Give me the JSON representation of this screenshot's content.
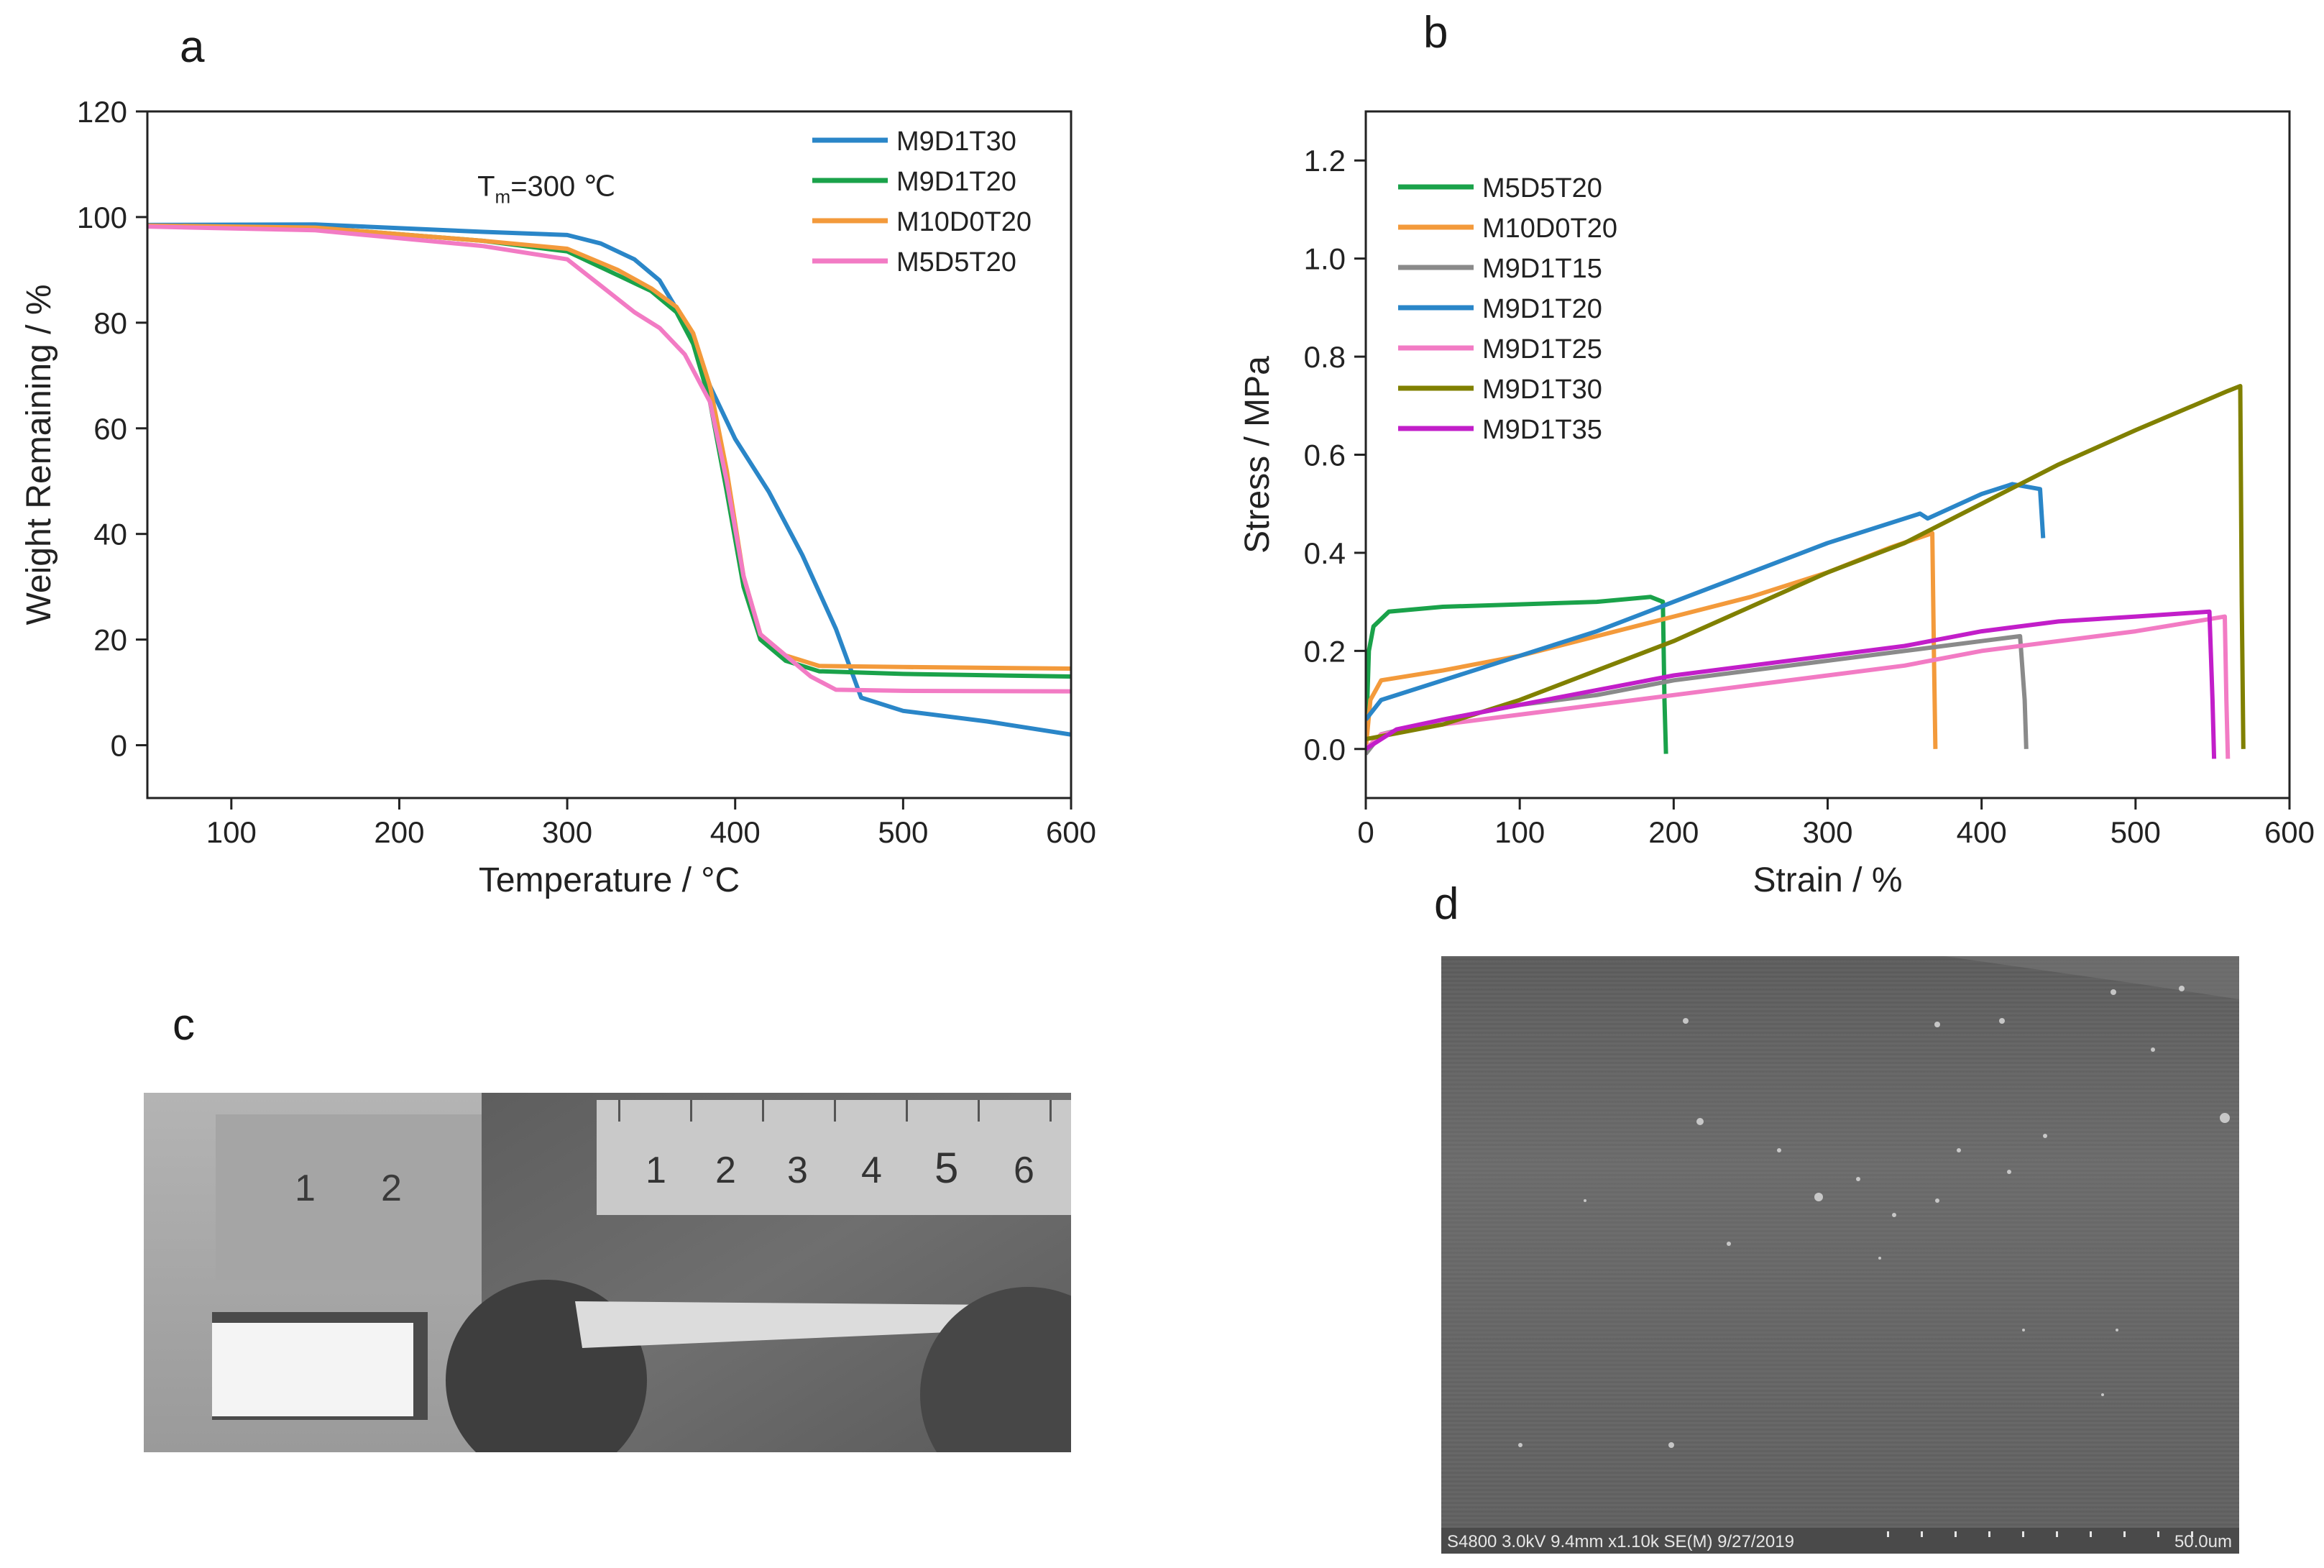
{
  "panel_labels": {
    "a": "a",
    "b": "b",
    "c": "c",
    "d": "d"
  },
  "chart_data": [
    {
      "type": "line",
      "panel": "a",
      "xlabel": "Temperature / °C",
      "ylabel": "Weight Remaining / %",
      "xlim": [
        50,
        600
      ],
      "ylim": [
        -10,
        120
      ],
      "xticks": [
        100,
        200,
        300,
        400,
        500,
        600
      ],
      "yticks": [
        0,
        20,
        40,
        60,
        80,
        100,
        120
      ],
      "annotation": {
        "base": "T",
        "sub": "m",
        "rest": "=300 ℃",
        "x": 300,
        "y": 104
      },
      "legend": "top-right",
      "series": [
        {
          "name": "M9D1T30",
          "color": "#2a86c8",
          "points": [
            [
              50,
              98.5
            ],
            [
              150,
              98.6
            ],
            [
              250,
              97.2
            ],
            [
              300,
              96.6
            ],
            [
              320,
              95
            ],
            [
              340,
              92
            ],
            [
              355,
              88
            ],
            [
              370,
              80
            ],
            [
              385,
              68
            ],
            [
              400,
              58
            ],
            [
              420,
              48
            ],
            [
              440,
              36
            ],
            [
              460,
              22
            ],
            [
              475,
              9
            ],
            [
              500,
              6.5
            ],
            [
              550,
              4.5
            ],
            [
              600,
              2
            ]
          ]
        },
        {
          "name": "M9D1T20",
          "color": "#1aa24a",
          "points": [
            [
              50,
              98.3
            ],
            [
              150,
              98
            ],
            [
              250,
              95.5
            ],
            [
              300,
              93.5
            ],
            [
              330,
              89
            ],
            [
              350,
              86
            ],
            [
              365,
              82
            ],
            [
              375,
              76
            ],
            [
              385,
              65
            ],
            [
              395,
              48
            ],
            [
              405,
              30
            ],
            [
              415,
              20
            ],
            [
              430,
              16
            ],
            [
              450,
              14
            ],
            [
              500,
              13.5
            ],
            [
              600,
              13
            ]
          ]
        },
        {
          "name": "M10D0T20",
          "color": "#f39a3b",
          "points": [
            [
              50,
              98.4
            ],
            [
              150,
              98
            ],
            [
              250,
              95.5
            ],
            [
              300,
              94
            ],
            [
              330,
              90
            ],
            [
              350,
              86.5
            ],
            [
              365,
              83
            ],
            [
              375,
              78
            ],
            [
              385,
              68
            ],
            [
              395,
              52
            ],
            [
              405,
              32
            ],
            [
              415,
              21
            ],
            [
              430,
              17
            ],
            [
              450,
              15
            ],
            [
              500,
              14.8
            ],
            [
              600,
              14.5
            ]
          ]
        },
        {
          "name": "M5D5T20",
          "color": "#f27bc4",
          "points": [
            [
              50,
              98.2
            ],
            [
              150,
              97.5
            ],
            [
              250,
              94.5
            ],
            [
              300,
              92
            ],
            [
              320,
              87
            ],
            [
              340,
              82
            ],
            [
              355,
              79
            ],
            [
              370,
              74
            ],
            [
              385,
              65
            ],
            [
              395,
              50
            ],
            [
              405,
              32
            ],
            [
              415,
              21
            ],
            [
              430,
              17
            ],
            [
              445,
              13
            ],
            [
              460,
              10.5
            ],
            [
              500,
              10.3
            ],
            [
              600,
              10.2
            ]
          ]
        }
      ]
    },
    {
      "type": "line",
      "panel": "b",
      "xlabel": "Strain / %",
      "ylabel": "Stress / MPa",
      "xlim": [
        0,
        600
      ],
      "ylim": [
        -0.1,
        1.3
      ],
      "xticks": [
        0,
        100,
        200,
        300,
        400,
        500,
        600
      ],
      "yticks": [
        0.0,
        0.2,
        0.4,
        0.6,
        0.8,
        1.0,
        1.2
      ],
      "legend": "top-left",
      "series": [
        {
          "name": "M5D5T20",
          "color": "#1aa24a",
          "points": [
            [
              0,
              0
            ],
            [
              2,
              0.2
            ],
            [
              5,
              0.25
            ],
            [
              15,
              0.28
            ],
            [
              50,
              0.29
            ],
            [
              100,
              0.295
            ],
            [
              150,
              0.3
            ],
            [
              185,
              0.31
            ],
            [
              193,
              0.3
            ],
            [
              194,
              0.1
            ],
            [
              195,
              -0.01
            ]
          ]
        },
        {
          "name": "M10D0T20",
          "color": "#f39a3b",
          "points": [
            [
              0,
              0
            ],
            [
              3,
              0.1
            ],
            [
              10,
              0.14
            ],
            [
              50,
              0.16
            ],
            [
              100,
              0.19
            ],
            [
              150,
              0.23
            ],
            [
              200,
              0.27
            ],
            [
              250,
              0.31
            ],
            [
              300,
              0.36
            ],
            [
              340,
              0.41
            ],
            [
              368,
              0.44
            ],
            [
              369,
              0.2
            ],
            [
              370,
              0
            ]
          ]
        },
        {
          "name": "M9D1T15",
          "color": "#8a8a8a",
          "points": [
            [
              0,
              -0.01
            ],
            [
              10,
              0.03
            ],
            [
              50,
              0.06
            ],
            [
              100,
              0.09
            ],
            [
              150,
              0.11
            ],
            [
              200,
              0.14
            ],
            [
              250,
              0.16
            ],
            [
              300,
              0.18
            ],
            [
              350,
              0.2
            ],
            [
              400,
              0.22
            ],
            [
              425,
              0.23
            ],
            [
              428,
              0.1
            ],
            [
              429,
              0
            ]
          ]
        },
        {
          "name": "M9D1T20",
          "color": "#2a86c8",
          "points": [
            [
              0,
              0.06
            ],
            [
              10,
              0.1
            ],
            [
              50,
              0.14
            ],
            [
              100,
              0.19
            ],
            [
              150,
              0.24
            ],
            [
              200,
              0.3
            ],
            [
              250,
              0.36
            ],
            [
              300,
              0.42
            ],
            [
              360,
              0.48
            ],
            [
              365,
              0.47
            ],
            [
              400,
              0.52
            ],
            [
              420,
              0.54
            ],
            [
              438,
              0.53
            ],
            [
              440,
              0.43
            ]
          ]
        },
        {
          "name": "M9D1T25",
          "color": "#f27bc4",
          "points": [
            [
              0,
              0
            ],
            [
              10,
              0.03
            ],
            [
              50,
              0.05
            ],
            [
              100,
              0.07
            ],
            [
              150,
              0.09
            ],
            [
              200,
              0.11
            ],
            [
              250,
              0.13
            ],
            [
              300,
              0.15
            ],
            [
              350,
              0.17
            ],
            [
              400,
              0.2
            ],
            [
              450,
              0.22
            ],
            [
              500,
              0.24
            ],
            [
              558,
              0.27
            ],
            [
              559,
              0.1
            ],
            [
              560,
              -0.02
            ]
          ]
        },
        {
          "name": "M9D1T30",
          "color": "#808000",
          "points": [
            [
              0,
              0.02
            ],
            [
              50,
              0.05
            ],
            [
              100,
              0.1
            ],
            [
              150,
              0.16
            ],
            [
              200,
              0.22
            ],
            [
              250,
              0.29
            ],
            [
              300,
              0.36
            ],
            [
              350,
              0.42
            ],
            [
              400,
              0.5
            ],
            [
              450,
              0.58
            ],
            [
              500,
              0.65
            ],
            [
              560,
              0.73
            ],
            [
              568,
              0.74
            ],
            [
              569,
              0.3
            ],
            [
              570,
              0
            ]
          ]
        },
        {
          "name": "M9D1T35",
          "color": "#c21ec9",
          "points": [
            [
              0,
              0
            ],
            [
              20,
              0.04
            ],
            [
              50,
              0.06
            ],
            [
              100,
              0.09
            ],
            [
              150,
              0.12
            ],
            [
              200,
              0.15
            ],
            [
              250,
              0.17
            ],
            [
              300,
              0.19
            ],
            [
              350,
              0.21
            ],
            [
              400,
              0.24
            ],
            [
              450,
              0.26
            ],
            [
              500,
              0.27
            ],
            [
              548,
              0.28
            ],
            [
              550,
              0.1
            ],
            [
              551,
              -0.02
            ]
          ]
        }
      ]
    }
  ],
  "photo_c": {
    "ruler_left_numbers": [
      "1",
      "2"
    ],
    "ruler_right_numbers": [
      "1",
      "2",
      "3",
      "4",
      "5",
      "6"
    ]
  },
  "sem_d": {
    "info": "S4800 3.0kV 9.4mm x1.10k SE(M) 9/27/2019",
    "scale": "50.0um"
  }
}
